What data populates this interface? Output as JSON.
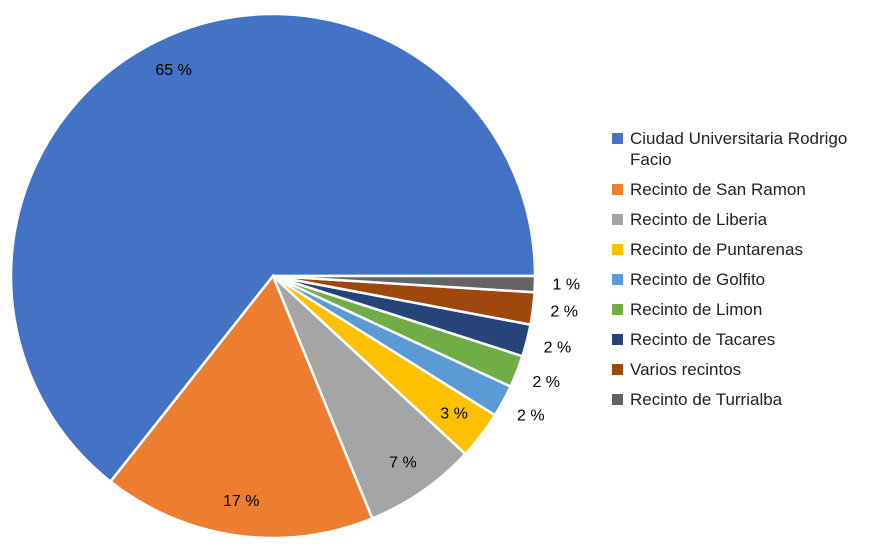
{
  "chart_data": {
    "type": "pie",
    "categories": [
      "Ciudad Universitaria Rodrigo Facio",
      "Recinto de San Ramon",
      "Recinto de Liberia",
      "Recinto de Puntarenas",
      "Recinto de Golfito",
      "Recinto de Limon",
      "Recinto de Tacares",
      "Varios recintos",
      "Recinto de Turrialba"
    ],
    "values": [
      65,
      17,
      7,
      3,
      2,
      2,
      2,
      2,
      1
    ],
    "value_labels": [
      "65 %",
      "17 %",
      "7 %",
      "3 %",
      "2 %",
      "2 %",
      "2 %",
      "2 %",
      "1 %"
    ],
    "colors": [
      "#4472c4",
      "#ed7d31",
      "#a5a5a5",
      "#ffc000",
      "#5b9bd5",
      "#70ad47",
      "#264478",
      "#9e480e",
      "#636363"
    ],
    "legend": "right"
  }
}
